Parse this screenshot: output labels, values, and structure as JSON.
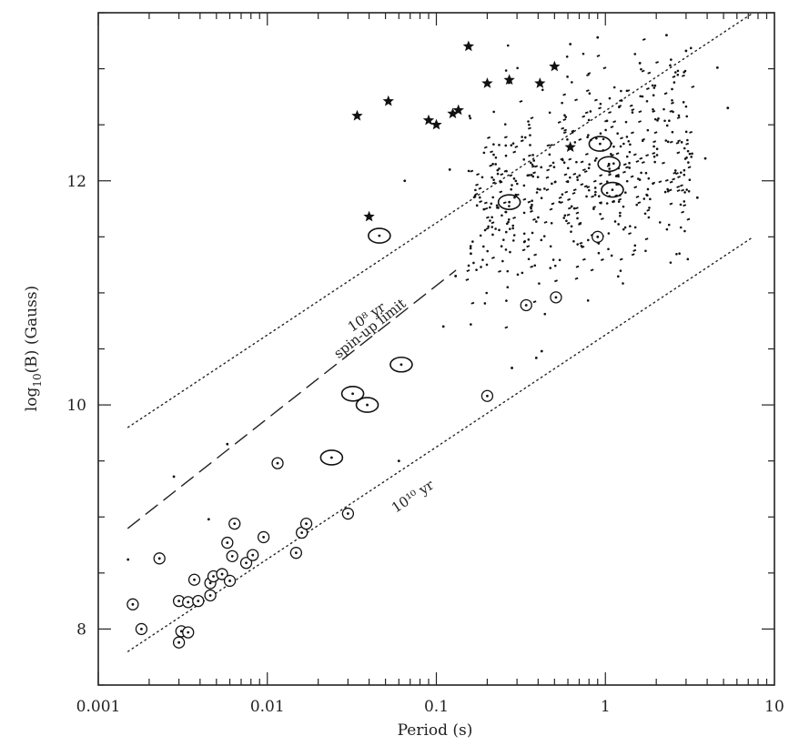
{
  "chart_data": {
    "type": "scatter",
    "xlabel": "Period (s)",
    "ylabel_prefix": "log",
    "ylabel_sub": "10",
    "ylabel_suffix": "(B) (Gauss)",
    "xscale": "log",
    "xlim": [
      0.001,
      10
    ],
    "ylim": [
      7.5,
      13.5
    ],
    "x_ticks": [
      {
        "value": 0.001,
        "label": "0.001"
      },
      {
        "value": 0.01,
        "label": "0.01"
      },
      {
        "value": 0.1,
        "label": "0.1"
      },
      {
        "value": 1,
        "label": "1"
      },
      {
        "value": 10,
        "label": "10"
      }
    ],
    "y_ticks": [
      {
        "value": 8,
        "label": "8"
      },
      {
        "value": 10,
        "label": "10"
      },
      {
        "value": 12,
        "label": "12"
      }
    ],
    "lines": [
      {
        "label": "10⁸ yr",
        "style": "dotted",
        "p1": [
          0.0015,
          9.8
        ],
        "p2": [
          7.5,
          13.5
        ],
        "label_at": [
          0.04,
          10.75
        ]
      },
      {
        "label": "spin-up limit",
        "style": "dashed",
        "p1": [
          0.0015,
          8.9
        ],
        "p2": [
          0.13,
          11.2
        ],
        "label_at": [
          0.042,
          10.65
        ]
      },
      {
        "label": "10¹⁰ yr",
        "style": "dotted",
        "p1": [
          0.0015,
          7.8
        ],
        "p2": [
          7.5,
          11.5
        ],
        "label_at": [
          0.075,
          9.15
        ]
      }
    ],
    "stars": [
      [
        0.034,
        12.58
      ],
      [
        0.052,
        12.71
      ],
      [
        0.09,
        12.54
      ],
      [
        0.1,
        12.5
      ],
      [
        0.125,
        12.6
      ],
      [
        0.135,
        12.63
      ],
      [
        0.155,
        13.2
      ],
      [
        0.2,
        12.87
      ],
      [
        0.27,
        12.9
      ],
      [
        0.41,
        12.87
      ],
      [
        0.5,
        13.02
      ],
      [
        0.62,
        12.3
      ],
      [
        0.04,
        11.68
      ]
    ],
    "circled_points": [
      [
        0.0016,
        8.22
      ],
      [
        0.0018,
        8.0
      ],
      [
        0.0023,
        8.63
      ],
      [
        0.003,
        7.88
      ],
      [
        0.003,
        8.25
      ],
      [
        0.0031,
        7.98
      ],
      [
        0.0034,
        7.97
      ],
      [
        0.0034,
        8.24
      ],
      [
        0.0037,
        8.44
      ],
      [
        0.0039,
        8.25
      ],
      [
        0.0046,
        8.3
      ],
      [
        0.0046,
        8.41
      ],
      [
        0.0048,
        8.47
      ],
      [
        0.0054,
        8.49
      ],
      [
        0.0058,
        8.77
      ],
      [
        0.006,
        8.43
      ],
      [
        0.0062,
        8.65
      ],
      [
        0.0064,
        8.94
      ],
      [
        0.0075,
        8.59
      ],
      [
        0.0082,
        8.66
      ],
      [
        0.0095,
        8.82
      ],
      [
        0.0115,
        9.48
      ],
      [
        0.0148,
        8.68
      ],
      [
        0.016,
        8.86
      ],
      [
        0.017,
        8.94
      ],
      [
        0.03,
        9.03
      ],
      [
        0.2,
        10.08
      ],
      [
        0.34,
        10.89
      ],
      [
        0.51,
        10.96
      ],
      [
        0.9,
        11.5
      ]
    ],
    "binary_ellipses": [
      [
        0.046,
        11.51
      ],
      [
        0.024,
        9.53
      ],
      [
        0.032,
        10.1
      ],
      [
        0.039,
        10.0
      ],
      [
        0.062,
        10.36
      ],
      [
        0.27,
        11.81
      ],
      [
        0.93,
        12.33
      ],
      [
        1.05,
        12.15
      ],
      [
        1.1,
        11.92
      ]
    ],
    "isolated_dots": [
      [
        0.0015,
        8.62
      ],
      [
        0.0028,
        9.36
      ],
      [
        0.0045,
        8.98
      ],
      [
        0.0058,
        9.65
      ],
      [
        0.0075,
        8.6
      ],
      [
        0.06,
        9.5
      ],
      [
        0.065,
        12.0
      ],
      [
        0.11,
        10.7
      ],
      [
        0.12,
        12.1
      ],
      [
        0.13,
        11.15
      ],
      [
        0.16,
        11.35
      ],
      [
        0.28,
        10.33
      ],
      [
        0.39,
        10.42
      ],
      [
        0.42,
        10.48
      ],
      [
        0.62,
        13.22
      ],
      [
        0.9,
        13.28
      ],
      [
        1.6,
        13.05
      ],
      [
        2.3,
        13.3
      ],
      [
        3.0,
        13.16
      ],
      [
        4.6,
        13.01
      ],
      [
        5.3,
        12.65
      ],
      [
        3.9,
        12.2
      ],
      [
        3.5,
        11.85
      ]
    ],
    "cluster": {
      "description_count": 560,
      "log_period_range": [
        -0.82,
        0.52
      ],
      "logB_center": 12.0,
      "logB_spread": 0.45,
      "color": "#111111"
    }
  }
}
